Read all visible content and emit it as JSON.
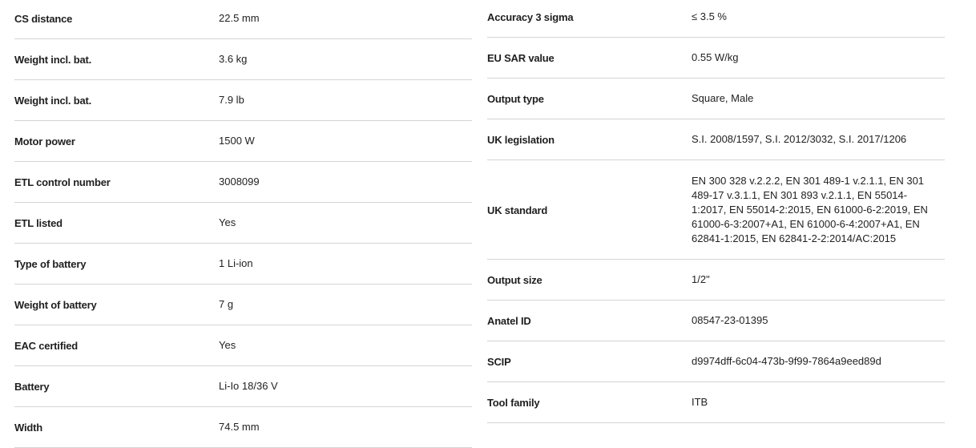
{
  "left": [
    {
      "label": "CS distance",
      "value": "22.5 mm"
    },
    {
      "label": "Weight incl. bat.",
      "value": "3.6 kg"
    },
    {
      "label": "Weight incl. bat.",
      "value": "7.9 lb"
    },
    {
      "label": "Motor power",
      "value": "1500 W"
    },
    {
      "label": "ETL control number",
      "value": "3008099"
    },
    {
      "label": "ETL listed",
      "value": "Yes"
    },
    {
      "label": "Type of battery",
      "value": "1 Li-ion"
    },
    {
      "label": "Weight of battery",
      "value": "7 g"
    },
    {
      "label": "EAC certified",
      "value": "Yes"
    },
    {
      "label": "Battery",
      "value": "Li-Io 18/36 V"
    },
    {
      "label": "Width",
      "value": "74.5 mm"
    }
  ],
  "right": [
    {
      "label": "Accuracy 3 sigma",
      "value": "≤ 3.5 %"
    },
    {
      "label": "EU SAR value",
      "value": "0.55 W/kg"
    },
    {
      "label": "Output type",
      "value": "Square, Male"
    },
    {
      "label": "UK legislation",
      "value": "S.I. 2008/1597, S.I. 2012/3032, S.I. 2017/1206"
    },
    {
      "label": "UK standard",
      "value": "EN 300 328 v.2.2.2, EN 301 489-1 v.2.1.1, EN 301 489-17 v.3.1.1, EN 301 893 v.2.1.1, EN 55014-1:2017, EN 55014-2:2015, EN 61000-6-2:2019, EN 61000-6-3:2007+A1, EN 61000-6-4:2007+A1, EN 62841-1:2015, EN 62841-2-2:2014/AC:2015"
    },
    {
      "label": "Output size",
      "value": "1/2\""
    },
    {
      "label": "Anatel ID",
      "value": "08547-23-01395"
    },
    {
      "label": "SCIP",
      "value": "d9974dff-6c04-473b-9f99-7864a9eed89d"
    },
    {
      "label": "Tool family",
      "value": "ITB"
    }
  ]
}
